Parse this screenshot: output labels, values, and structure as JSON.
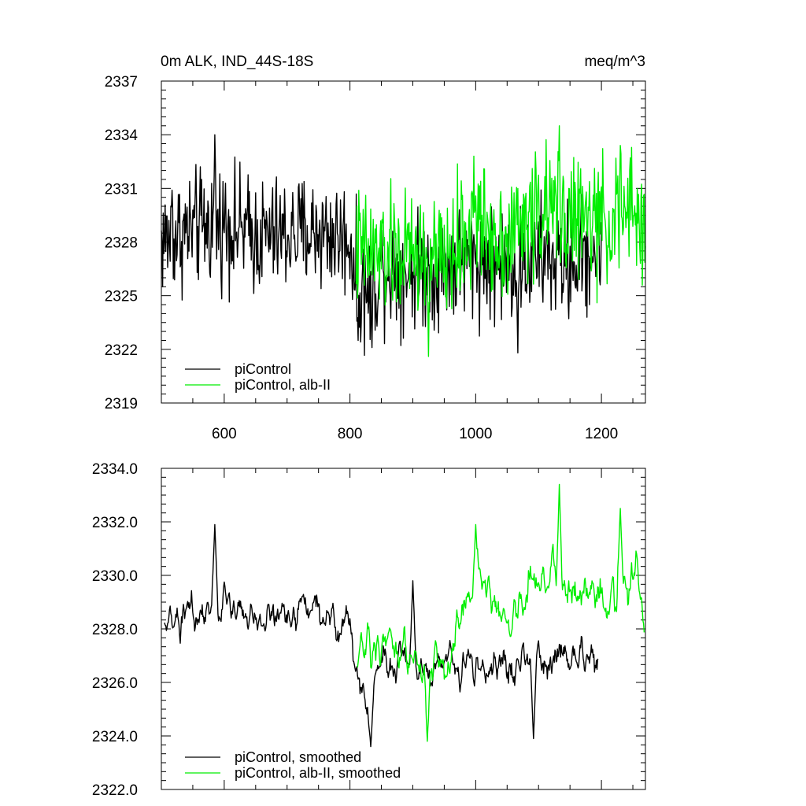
{
  "colors": {
    "black": "#000000",
    "green": "#00ee00",
    "frame": "#000000"
  },
  "chart_data": [
    {
      "type": "line",
      "title": "0m ALK, IND_44S-18S",
      "units": "meq/m^3",
      "xlim": [
        500,
        1270
      ],
      "ylim": [
        2319,
        2337
      ],
      "xticks": [
        600,
        800,
        1000,
        1200
      ],
      "xtick_labels": [
        "600",
        "800",
        "1000",
        "1200"
      ],
      "yticks": [
        2319,
        2322,
        2325,
        2328,
        2331,
        2334,
        2337
      ],
      "ytick_labels": [
        "2319",
        "2322",
        "2325",
        "2328",
        "2331",
        "2334",
        "2337"
      ],
      "legend": [
        "piControl",
        "piControl, alb-II"
      ],
      "legend_placement": "bottom-left",
      "series": [
        {
          "name": "piControl",
          "color": "#000000",
          "x_start": 500,
          "x_end": 1200,
          "mean": 2328.2,
          "control_x": [
            500,
            550,
            600,
            650,
            700,
            750,
            800,
            812,
            830,
            850,
            900,
            950,
            1000,
            1050,
            1100,
            1150,
            1200
          ],
          "control_y": [
            2328.1,
            2328.7,
            2329.1,
            2328.3,
            2328.4,
            2328.6,
            2328.1,
            2325.6,
            2325.0,
            2326.6,
            2326.4,
            2326.6,
            2327.0,
            2326.7,
            2327.2,
            2326.8,
            2327.6
          ],
          "amplitude": 1.6,
          "extremes": [
            [
              585,
              2334.0
            ],
            [
              813,
              2322.5
            ],
            [
              835,
              2322.1
            ],
            [
              1067,
              2321.8
            ],
            [
              517,
              2330.9
            ]
          ]
        },
        {
          "name": "piControl, alb-II",
          "color": "#00ee00",
          "x_start": 810,
          "x_end": 1270,
          "mean": 2328.0,
          "control_x": [
            810,
            850,
            900,
            950,
            1000,
            1050,
            1100,
            1150,
            1200,
            1250,
            1270
          ],
          "control_y": [
            2327.6,
            2327.2,
            2327.4,
            2326.8,
            2329.0,
            2328.2,
            2329.8,
            2329.4,
            2329.0,
            2329.6,
            2328.6
          ],
          "amplitude": 1.7,
          "extremes": [
            [
              925,
              2321.6
            ],
            [
              1133,
              2334.5
            ],
            [
              997,
              2332.8
            ],
            [
              1230,
              2333.4
            ]
          ]
        }
      ]
    },
    {
      "type": "line",
      "xlim": [
        500,
        1270
      ],
      "ylim": [
        2322.0,
        2334.0
      ],
      "xticks": [
        600,
        800,
        1000,
        1200
      ],
      "yticks": [
        2322.0,
        2324.0,
        2326.0,
        2328.0,
        2330.0,
        2332.0,
        2334.0
      ],
      "ytick_labels": [
        "2322.0",
        "2324.0",
        "2326.0",
        "2328.0",
        "2330.0",
        "2332.0",
        "2334.0"
      ],
      "legend": [
        "piControl, smoothed",
        "piControl, alb-II, smoothed"
      ],
      "legend_placement": "bottom-left",
      "series": [
        {
          "name": "piControl, smoothed",
          "color": "#000000",
          "x_start": 505,
          "x_end": 1195,
          "mean": 2328.3,
          "control_x": [
            505,
            550,
            600,
            650,
            700,
            750,
            800,
            812,
            830,
            850,
            900,
            950,
            1000,
            1050,
            1100,
            1150,
            1195
          ],
          "control_y": [
            2328.0,
            2328.6,
            2329.0,
            2328.4,
            2328.5,
            2328.6,
            2328.2,
            2326.0,
            2325.4,
            2326.8,
            2326.5,
            2326.5,
            2326.8,
            2326.6,
            2326.9,
            2326.8,
            2327.0
          ],
          "amplitude": 0.8,
          "extremes": [
            [
              585,
              2331.9
            ],
            [
              833,
              2323.6
            ],
            [
              1092,
              2323.9
            ],
            [
              900,
              2329.8
            ]
          ]
        },
        {
          "name": "piControl, alb-II, smoothed",
          "color": "#00ee00",
          "x_start": 812,
          "x_end": 1268,
          "mean": 2328.2,
          "control_x": [
            812,
            850,
            900,
            950,
            1000,
            1050,
            1100,
            1150,
            1200,
            1250,
            1268
          ],
          "control_y": [
            2327.5,
            2327.0,
            2327.3,
            2326.4,
            2329.6,
            2328.4,
            2330.0,
            2329.6,
            2329.0,
            2329.8,
            2328.8
          ],
          "amplitude": 0.9,
          "extremes": [
            [
              923,
              2323.8
            ],
            [
              1133,
              2333.4
            ],
            [
              1230,
              2332.5
            ],
            [
              1000,
              2331.9
            ]
          ]
        }
      ]
    }
  ]
}
